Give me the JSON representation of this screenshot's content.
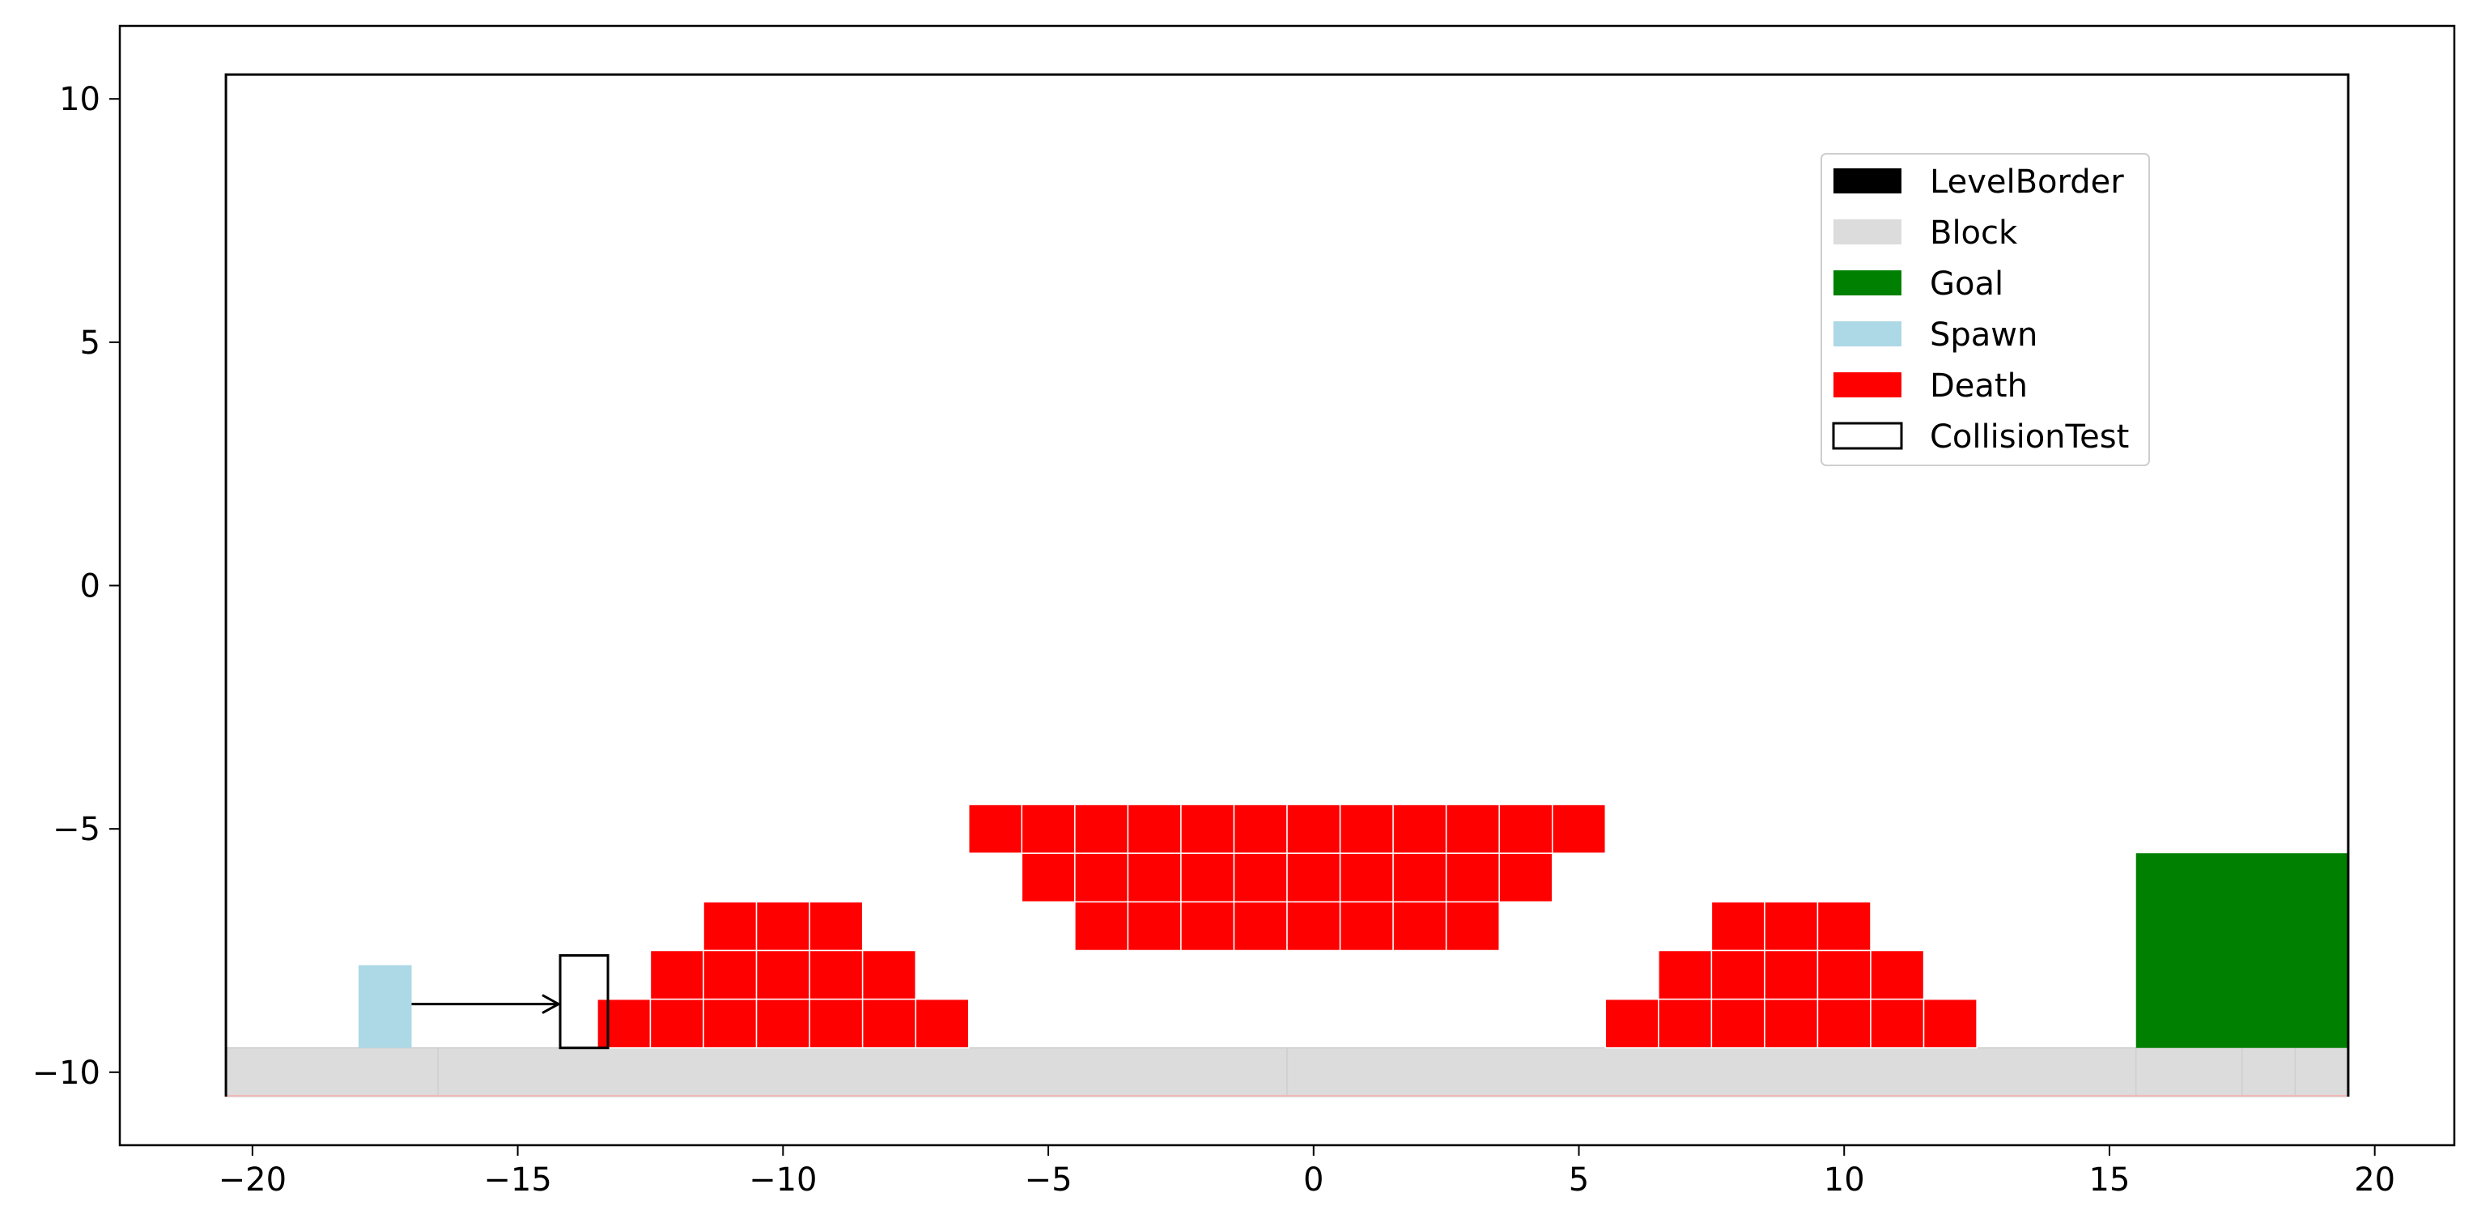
{
  "chart_data": {
    "type": "tile-map",
    "title": "",
    "xlabel": "",
    "ylabel": "",
    "xlim": [
      -22.5,
      21.5
    ],
    "ylim": [
      -11.5,
      11.5
    ],
    "xticks": [
      -20,
      -15,
      -10,
      -5,
      0,
      5,
      10,
      15,
      20
    ],
    "yticks": [
      -10,
      -5,
      0,
      5,
      10
    ],
    "grid": false,
    "legend_position": "upper-right",
    "colors": {
      "LevelBorder": "#000000",
      "Block": "#dcdcdc",
      "Goal": "#008000",
      "Spawn": "#add8e6",
      "Death": "#ff0000",
      "CollisionTest": "none"
    },
    "legend": [
      {
        "label": "LevelBorder",
        "swatch": "LevelBorder"
      },
      {
        "label": "Block",
        "swatch": "Block"
      },
      {
        "label": "Goal",
        "swatch": "Goal"
      },
      {
        "label": "Spawn",
        "swatch": "Spawn"
      },
      {
        "label": "Death",
        "swatch": "Death"
      },
      {
        "label": "CollisionTest",
        "swatch": "CollisionTest"
      }
    ],
    "level_border": {
      "x_min": -20.5,
      "x_max": 19.5,
      "y_min": -10.5,
      "y_max": 10.5
    },
    "blocks": [
      {
        "x0": -20.5,
        "x1": -16.5,
        "y0": -10.5,
        "y1": -9.5
      },
      {
        "x0": -16.5,
        "x1": -0.5,
        "y0": -10.5,
        "y1": -9.5
      },
      {
        "x0": -0.5,
        "x1": 15.5,
        "y0": -10.5,
        "y1": -9.5
      },
      {
        "x0": 15.5,
        "x1": 17.5,
        "y0": -10.5,
        "y1": -9.5
      },
      {
        "x0": 17.5,
        "x1": 18.5,
        "y0": -10.5,
        "y1": -9.5
      },
      {
        "x0": 18.5,
        "x1": 19.5,
        "y0": -10.5,
        "y1": -9.5
      }
    ],
    "goal": {
      "x0": 15.5,
      "x1": 19.5,
      "y0": -9.5,
      "y1": -5.5
    },
    "spawn": {
      "x0": -18.0,
      "x1": -17.0,
      "y0": -9.5,
      "y1": -7.8
    },
    "collision_test": {
      "x0": -14.2,
      "x1": -13.3,
      "y0": -9.5,
      "y1": -7.6
    },
    "move_arrow": {
      "from": [
        -17.0,
        -8.6
      ],
      "to": [
        -14.2,
        -8.6
      ]
    },
    "death_tiles": [
      {
        "x0": -6.5,
        "x1": 5.5,
        "y": -5.0
      },
      {
        "x0": -5.5,
        "x1": 4.5,
        "y": -6.0
      },
      {
        "x0": -4.5,
        "x1": 3.5,
        "y": -7.0
      },
      {
        "x0": -11.5,
        "x1": -8.5,
        "y": -7.0
      },
      {
        "x0": -12.5,
        "x1": -7.5,
        "y": -8.0
      },
      {
        "x0": -13.5,
        "x1": -6.5,
        "y": -9.0
      },
      {
        "x0": 7.5,
        "x1": 10.5,
        "y": -7.0
      },
      {
        "x0": 6.5,
        "x1": 11.5,
        "y": -8.0
      },
      {
        "x0": 5.5,
        "x1": 12.5,
        "y": -9.0
      }
    ]
  }
}
